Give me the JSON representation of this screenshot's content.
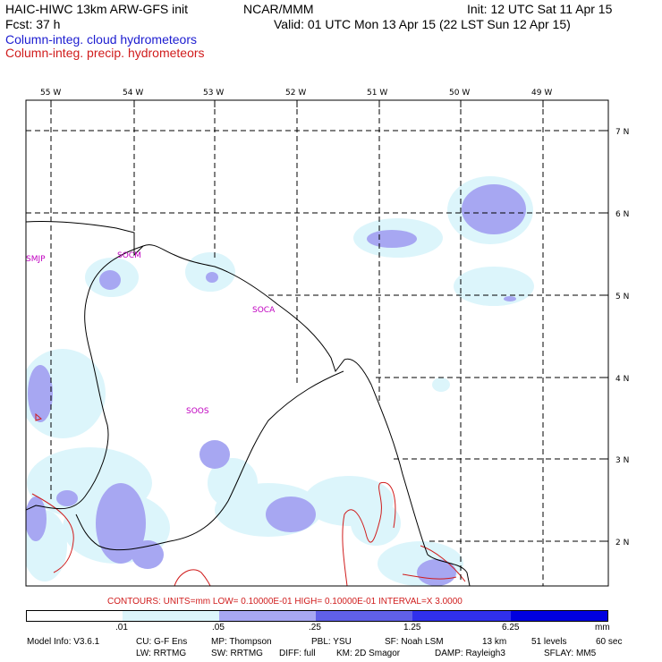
{
  "header": {
    "model_title": "HAIC-HIWC 13km ARW-GFS init",
    "org": "NCAR/MMM",
    "init": "Init: 12 UTC Sat 11 Apr 15",
    "fcst": "Fcst:   37 h",
    "valid": "Valid: 01 UTC Mon 13 Apr 15 (22 LST Sun 12 Apr 15)",
    "field1": "Column-integ. cloud hydrometeors",
    "field2": "Column-integ. precip. hydrometeors"
  },
  "map": {
    "lon_labels": [
      "55 W",
      "54 W",
      "53 W",
      "52 W",
      "51 W",
      "50 W",
      "49 W"
    ],
    "lat_labels": [
      "7 N",
      "6 N",
      "5 N",
      "4 N",
      "3 N",
      "2 N"
    ],
    "stations": [
      "SMJP",
      "SOCM",
      "SOCA",
      "SOOS"
    ],
    "colors": {
      "level1": "#dcf5fb",
      "level2": "#a7a7f2",
      "level3": "#6060e8",
      "level4": "#3030ec",
      "level5": "#0000e0",
      "precip_contour": "#d01c1c",
      "station": "#c000c0"
    }
  },
  "contours_line": "CONTOURS:  UNITS=mm   LOW= 0.10000E-01   HIGH= 0.10000E-01   INTERVAL=X   3.0000",
  "colorbar": {
    "ticks": [
      ".01",
      ".05",
      ".25",
      "1.25",
      "6.25"
    ],
    "unit": "mm"
  },
  "footer": {
    "line1": [
      "Model Info: V3.6.1",
      "CU: G-F Ens",
      "MP: Thompson",
      "PBL: YSU",
      "SF: Noah LSM",
      "13 km",
      "51 levels",
      "60 sec"
    ],
    "line2": [
      "LW: RRTMG",
      "SW: RRTMG",
      "DIFF: full",
      "KM: 2D Smagor",
      "DAMP: Rayleigh3",
      "SFLAY: MM5"
    ]
  }
}
